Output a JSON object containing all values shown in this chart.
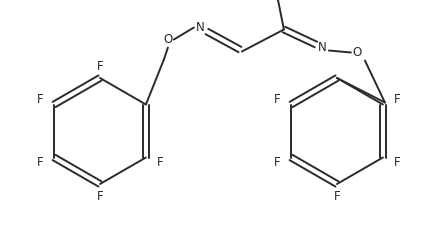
{
  "background_color": "#ffffff",
  "line_color": "#2a2a2a",
  "text_color": "#2a2a2a",
  "line_width": 1.4,
  "font_size": 8.5,
  "figsize": [
    4.29,
    2.31
  ],
  "dpi": 100,
  "xlim": [
    0,
    429
  ],
  "ylim": [
    0,
    231
  ]
}
